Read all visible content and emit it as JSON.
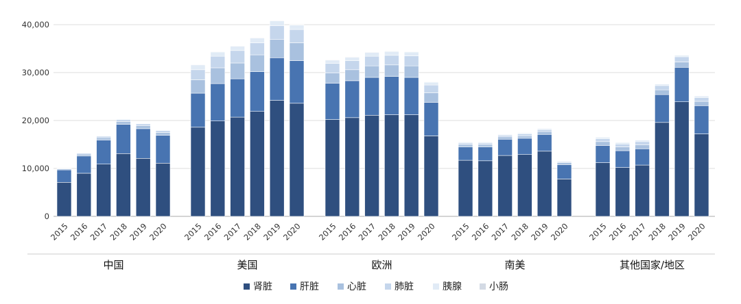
{
  "chart_data": {
    "type": "bar",
    "stacked": true,
    "title": "",
    "xlabel": "",
    "ylabel": "",
    "ylim": [
      0,
      40000
    ],
    "yticks": [
      "0",
      "10,000",
      "20,000",
      "30,000",
      "40,000"
    ],
    "ytick_values": [
      0,
      10000,
      20000,
      30000,
      40000
    ],
    "grid": true,
    "legend_position": "bottom",
    "years": [
      "2015",
      "2016",
      "2017",
      "2018",
      "2019",
      "2020"
    ],
    "groups": [
      {
        "name": "中国",
        "series_values": {
          "肾脏": [
            7100,
            9000,
            10900,
            13100,
            12100,
            11100
          ],
          "肝脏": [
            2600,
            3600,
            5000,
            6100,
            6200,
            5800
          ],
          "心脏": [
            200,
            400,
            500,
            600,
            600,
            600
          ],
          "肺脏": [
            100,
            200,
            300,
            400,
            400,
            400
          ],
          "胰腺": [
            0,
            0,
            0,
            0,
            0,
            0
          ],
          "小肠": [
            0,
            0,
            0,
            0,
            0,
            0
          ]
        }
      },
      {
        "name": "美国",
        "series_values": {
          "肾脏": [
            18600,
            19900,
            20700,
            21900,
            24200,
            23600
          ],
          "肝脏": [
            7100,
            7800,
            8000,
            8300,
            8900,
            8900
          ],
          "心脏": [
            2800,
            3300,
            3300,
            3500,
            3800,
            3700
          ],
          "肺脏": [
            2100,
            2400,
            2600,
            2500,
            2900,
            2800
          ],
          "胰腺": [
            1000,
            900,
            900,
            1000,
            1000,
            900
          ],
          "小肠": [
            100,
            100,
            100,
            100,
            100,
            100
          ]
        }
      },
      {
        "name": "欧洲",
        "series_values": {
          "肾脏": [
            20200,
            20600,
            21100,
            21200,
            21200,
            16800
          ],
          "肝脏": [
            7600,
            7700,
            7900,
            8000,
            7800,
            7000
          ],
          "心脏": [
            2100,
            2300,
            2400,
            2400,
            2400,
            2000
          ],
          "肺脏": [
            2000,
            1900,
            2000,
            2000,
            2100,
            1600
          ],
          "胰腺": [
            700,
            700,
            800,
            800,
            800,
            600
          ],
          "小肠": [
            100,
            100,
            100,
            100,
            100,
            100
          ]
        }
      },
      {
        "name": "南美",
        "series_values": {
          "肾脏": [
            11700,
            11600,
            12700,
            12900,
            13600,
            7800
          ],
          "肝脏": [
            2800,
            2900,
            3400,
            3400,
            3500,
            3000
          ],
          "心脏": [
            500,
            500,
            500,
            500,
            600,
            400
          ],
          "肺脏": [
            300,
            300,
            300,
            400,
            400,
            200
          ],
          "胰腺": [
            200,
            200,
            200,
            200,
            200,
            100
          ],
          "小肠": [
            0,
            0,
            0,
            0,
            0,
            0
          ]
        }
      },
      {
        "name": "其他国家/地区",
        "series_values": {
          "肾脏": [
            11200,
            10200,
            10700,
            19600,
            23900,
            17200
          ],
          "肝脏": [
            3600,
            3500,
            3400,
            5800,
            7200,
            5900
          ],
          "心脏": [
            800,
            800,
            800,
            1000,
            1100,
            900
          ],
          "肺脏": [
            600,
            600,
            700,
            900,
            1100,
            800
          ],
          "胰腺": [
            300,
            300,
            300,
            300,
            300,
            300
          ],
          "小肠": [
            0,
            0,
            0,
            0,
            0,
            0
          ]
        }
      }
    ],
    "series": [
      {
        "name": "肾脏",
        "color": "#2f4f7f"
      },
      {
        "name": "肝脏",
        "color": "#4874b1"
      },
      {
        "name": "心脏",
        "color": "#a9c1df"
      },
      {
        "name": "肺脏",
        "color": "#c5d6ec"
      },
      {
        "name": "胰腺",
        "color": "#e1ebf6"
      },
      {
        "name": "小肠",
        "color": "#d3dae4"
      }
    ],
    "colors": {
      "grid": "#dddddd",
      "axis": "#aaaaaa",
      "separator": "#cccccc"
    }
  }
}
